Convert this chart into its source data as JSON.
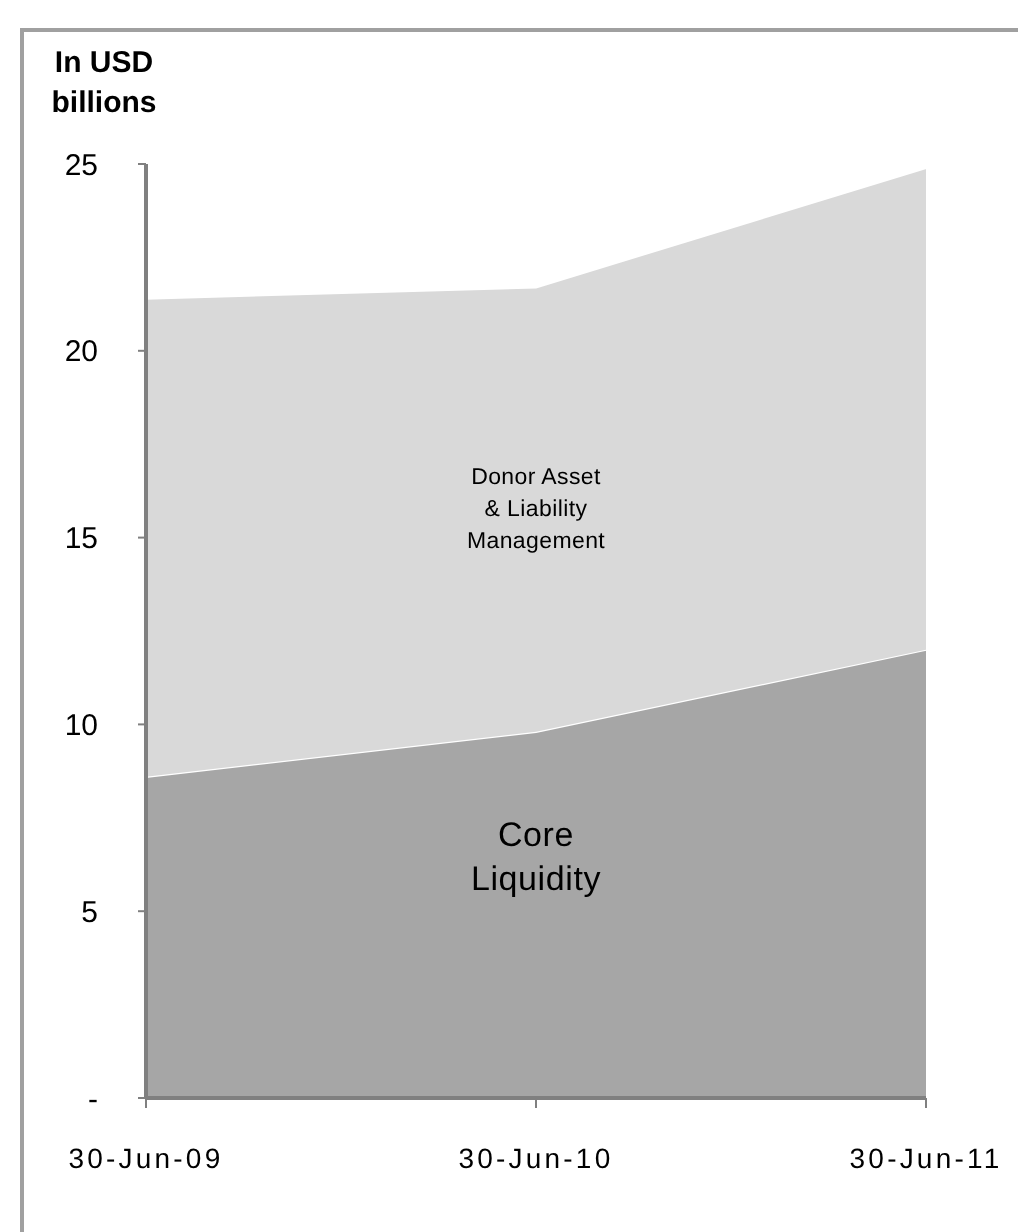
{
  "chart_data": {
    "type": "area",
    "ylabel": "In USD billions",
    "categories": [
      "30-Jun-09",
      "30-Jun-10",
      "30-Jun-11"
    ],
    "stacked": true,
    "series": [
      {
        "name": "Core Liquidity",
        "color": "#a6a6a6",
        "values": [
          8.6,
          9.8,
          12.0
        ]
      },
      {
        "name": "Donor Asset & Liability Management",
        "color": "#d9d9d9",
        "values": [
          12.8,
          11.9,
          12.9
        ]
      }
    ],
    "ylim": [
      0,
      25
    ],
    "yticks": [
      {
        "value": 0,
        "label": "-"
      },
      5,
      10,
      15,
      20,
      25
    ]
  }
}
